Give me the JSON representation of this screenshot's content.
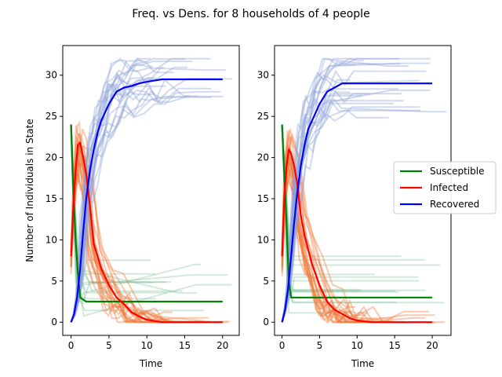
{
  "figure": {
    "title": "Freq. vs Dens. for 8 households of 4 people"
  },
  "colors": {
    "susceptible": "#008000",
    "infected": "#ff0000",
    "recovered": "#0000ff",
    "susceptible_light": "#7fbf9a",
    "infected_light": "#f07a3c",
    "recovered_light": "#8ea3d8"
  },
  "legend": {
    "placement": "right-middle",
    "items": [
      "Susceptible",
      "Infected",
      "Recovered"
    ]
  },
  "chart_data": [
    {
      "type": "line",
      "panel": "left",
      "xlabel": "Time",
      "ylabel": "Number of Individuals in State",
      "xlim": [
        -1.1,
        22.2
      ],
      "ylim": [
        -1.6,
        33.6
      ],
      "xticks": [
        0,
        5,
        10,
        15,
        20
      ],
      "yticks": [
        0,
        5,
        10,
        15,
        20,
        25,
        30
      ],
      "series": [
        {
          "name": "Susceptible",
          "x": [
            0,
            0.3,
            0.6,
            0.9,
            1.2,
            2,
            20
          ],
          "y": [
            24,
            16,
            10,
            6,
            3,
            2.5,
            2.5
          ]
        },
        {
          "name": "Infected",
          "x": [
            0,
            0.3,
            0.6,
            0.9,
            1.2,
            1.6,
            2,
            2.5,
            3,
            4,
            5,
            6,
            7,
            8,
            9,
            10,
            12,
            20
          ],
          "y": [
            8,
            14,
            18.5,
            21.5,
            21.8,
            20,
            18,
            14,
            9.5,
            6.5,
            4.5,
            3,
            2.2,
            1.2,
            0.7,
            0.3,
            0,
            0
          ]
        },
        {
          "name": "Recovered",
          "x": [
            0,
            0.4,
            0.8,
            1.2,
            1.6,
            2,
            2.5,
            3,
            3.5,
            4,
            5,
            6,
            7,
            8,
            9,
            10,
            12,
            20
          ],
          "y": [
            0,
            1,
            3,
            6.5,
            11,
            15,
            18.5,
            21,
            23,
            24.5,
            26.5,
            28,
            28.5,
            28.7,
            29,
            29.2,
            29.5,
            29.5
          ]
        }
      ]
    },
    {
      "type": "line",
      "panel": "right",
      "xlabel": "Time",
      "ylabel": "",
      "xlim": [
        -1.0,
        22.5
      ],
      "ylim": [
        -1.6,
        33.6
      ],
      "xticks": [
        0,
        5,
        10,
        15,
        20
      ],
      "yticks": [
        0,
        5,
        10,
        15,
        20,
        25,
        30
      ],
      "series": [
        {
          "name": "Susceptible",
          "x": [
            0,
            0.3,
            0.6,
            0.9,
            1.2,
            20
          ],
          "y": [
            24,
            18,
            12,
            5,
            3,
            3
          ]
        },
        {
          "name": "Infected",
          "x": [
            0,
            0.3,
            0.6,
            0.9,
            1.2,
            1.6,
            2,
            2.5,
            3,
            4,
            5,
            6,
            7,
            8,
            9,
            10,
            12,
            20
          ],
          "y": [
            8,
            15,
            19,
            21,
            20.5,
            19,
            17,
            13,
            10.5,
            7,
            4.5,
            2.5,
            1.5,
            1,
            0.5,
            0.2,
            0,
            0
          ]
        },
        {
          "name": "Recovered",
          "x": [
            0,
            0.4,
            0.8,
            1.2,
            1.6,
            2,
            2.5,
            3,
            3.5,
            4,
            5,
            6,
            7,
            8,
            20
          ],
          "y": [
            0,
            1.5,
            4,
            8,
            12,
            15.5,
            19,
            21.5,
            23.5,
            24.5,
            26.5,
            28,
            28.5,
            29,
            29
          ]
        }
      ]
    }
  ]
}
